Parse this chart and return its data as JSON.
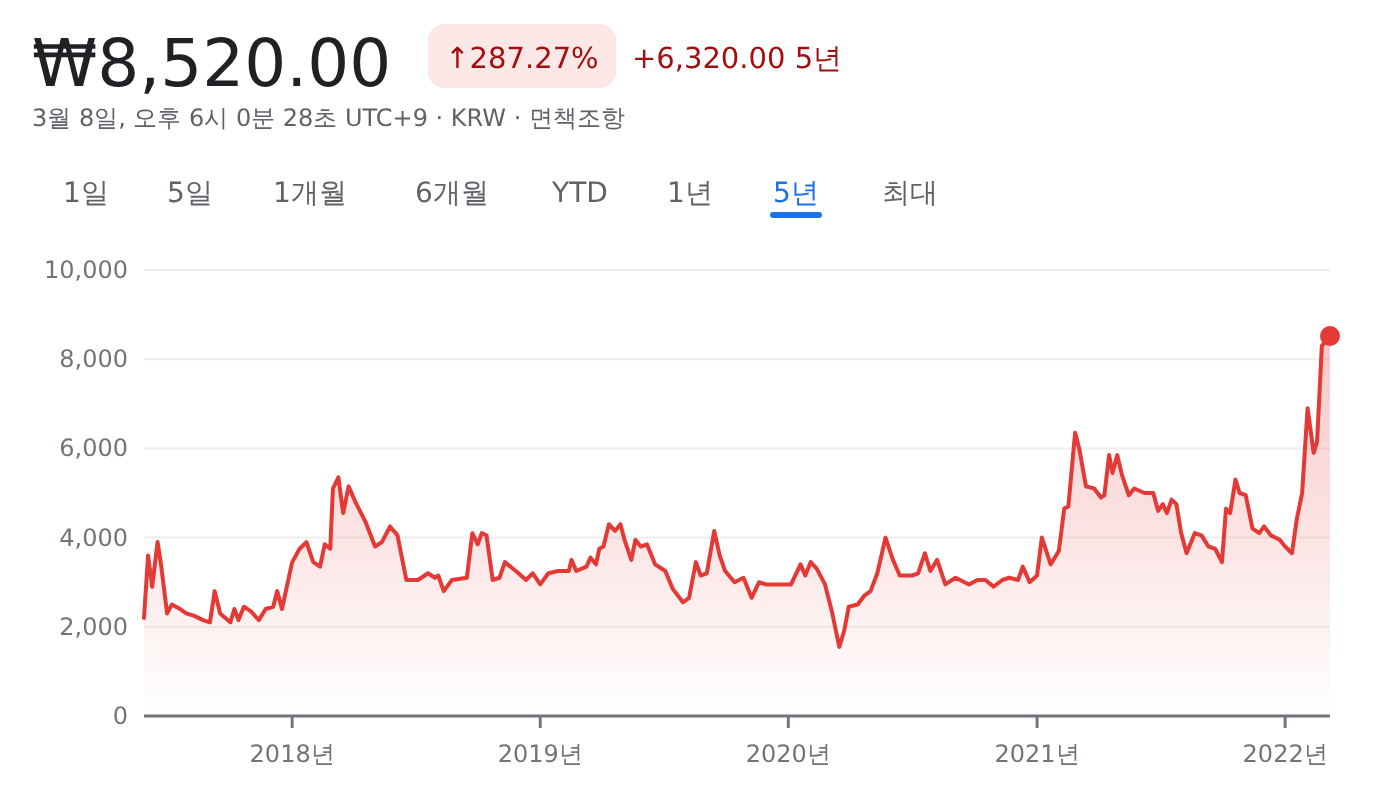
{
  "chart_data": {
    "type": "area",
    "title": "₩8,520.00",
    "subtitle": "3월 8일, 오후 6시 0분 28초 UTC+9 · KRW · 면책조항",
    "annotations": [
      "↑287.27%",
      "+6,320.00 5년",
      "1일",
      "5일",
      "1개월",
      "6개월",
      "YTD",
      "1년",
      "5년",
      "최대"
    ],
    "x": [
      "2017-05-28",
      "2017-06-03",
      "2017-06-09",
      "2017-06-17",
      "2017-06-22",
      "2017-07-01",
      "2017-07-08",
      "2017-07-20",
      "2017-07-29",
      "2017-08-09",
      "2017-08-23",
      "2017-09-02",
      "2017-09-09",
      "2017-09-17",
      "2017-10-02",
      "2017-10-08",
      "2017-10-14",
      "2017-10-22",
      "2017-11-01",
      "2017-11-13",
      "2017-11-23",
      "2017-12-04",
      "2017-12-10",
      "2017-12-17",
      "2018-01-01",
      "2018-01-12",
      "2018-01-22",
      "2018-02-01",
      "2018-02-11",
      "2018-02-18",
      "2018-02-26",
      "2018-03-02",
      "2018-03-10",
      "2018-03-17",
      "2018-03-25",
      "2018-04-04",
      "2018-04-19",
      "2018-05-03",
      "2018-05-13",
      "2018-05-25",
      "2018-06-05",
      "2018-06-18",
      "2018-07-05",
      "2018-07-20",
      "2018-07-30",
      "2018-08-04",
      "2018-08-12",
      "2018-08-24",
      "2018-09-15",
      "2018-09-23",
      "2018-10-01",
      "2018-10-07",
      "2018-10-14",
      "2018-10-23",
      "2018-11-02",
      "2018-11-10",
      "2018-11-22",
      "2018-11-30",
      "2018-12-11",
      "2018-12-21",
      "2019-01-01",
      "2019-01-13",
      "2019-01-27",
      "2019-02-12",
      "2019-02-16",
      "2019-02-23",
      "2019-03-10",
      "2019-03-16",
      "2019-03-24",
      "2019-03-29",
      "2019-04-04",
      "2019-04-12",
      "2019-04-21",
      "2019-04-29",
      "2019-05-05",
      "2019-05-15",
      "2019-05-21",
      "2019-05-29",
      "2019-06-07",
      "2019-06-19",
      "2019-07-04",
      "2019-07-15",
      "2019-07-30",
      "2019-08-08",
      "2019-08-18",
      "2019-08-25",
      "2019-09-03",
      "2019-09-14",
      "2019-09-22",
      "2019-09-30",
      "2019-10-14",
      "2019-10-27",
      "2019-11-08",
      "2019-11-19",
      "2019-11-29",
      "2019-12-11",
      "2020-01-05",
      "2020-01-19",
      "2020-01-26",
      "2020-02-03",
      "2020-02-12",
      "2020-02-24",
      "2020-03-05",
      "2020-03-16",
      "2020-03-23",
      "2020-03-30",
      "2020-04-12",
      "2020-04-22",
      "2020-05-01",
      "2020-05-11",
      "2020-05-23",
      "2020-06-03",
      "2020-06-13",
      "2020-07-01",
      "2020-07-10",
      "2020-07-20",
      "2020-07-28",
      "2020-08-07",
      "2020-08-19",
      "2020-09-03",
      "2020-09-23",
      "2020-10-05",
      "2020-10-17",
      "2020-10-29",
      "2020-11-11",
      "2020-11-21",
      "2020-12-04",
      "2020-12-11",
      "2020-12-21",
      "2021-01-01",
      "2021-01-08",
      "2021-01-21",
      "2021-02-02",
      "2021-02-10",
      "2021-02-16",
      "2021-02-26",
      "2021-03-04",
      "2021-03-14",
      "2021-03-26",
      "2021-04-05",
      "2021-04-10",
      "2021-04-17",
      "2021-04-22",
      "2021-04-29",
      "2021-05-06",
      "2021-05-16",
      "2021-05-24",
      "2021-06-08",
      "2021-06-21",
      "2021-06-28",
      "2021-07-05",
      "2021-07-11",
      "2021-07-18",
      "2021-07-25",
      "2021-08-01",
      "2021-08-09",
      "2021-08-21",
      "2021-08-31",
      "2021-09-10",
      "2021-09-20",
      "2021-09-30",
      "2021-10-06",
      "2021-10-12",
      "2021-10-20",
      "2021-10-26",
      "2021-11-04",
      "2021-11-14",
      "2021-11-24",
      "2021-12-01",
      "2021-12-11",
      "2021-12-24",
      "2022-01-01",
      "2022-01-11",
      "2022-01-18",
      "2022-01-26",
      "2022-02-03",
      "2022-02-12",
      "2022-02-17",
      "2022-02-24",
      "2022-03-08"
    ],
    "series": [
      {
        "color": "#e53935",
        "values": [
          2200,
          3600,
          2900,
          3900,
          3400,
          2300,
          2500,
          2400,
          2300,
          2250,
          2150,
          2100,
          2800,
          2300,
          2100,
          2400,
          2150,
          2450,
          2350,
          2150,
          2400,
          2450,
          2800,
          2400,
          3450,
          3750,
          3900,
          3450,
          3350,
          3850,
          3750,
          5100,
          5350,
          4550,
          5150,
          4800,
          4350,
          3800,
          3900,
          4250,
          4050,
          3050,
          3050,
          3200,
          3100,
          3150,
          2800,
          3050,
          3100,
          4100,
          3850,
          4100,
          4050,
          3050,
          3100,
          3450,
          3300,
          3200,
          3050,
          3200,
          2950,
          3200,
          3250,
          3250,
          3500,
          3250,
          3350,
          3550,
          3400,
          3750,
          3800,
          4300,
          4150,
          4300,
          3950,
          3500,
          3950,
          3800,
          3850,
          3400,
          3250,
          2850,
          2550,
          2650,
          3450,
          3150,
          3200,
          4150,
          3600,
          3250,
          3000,
          3100,
          2650,
          3000,
          2950,
          2950,
          2950,
          3400,
          3150,
          3450,
          3300,
          2950,
          2350,
          1550,
          1900,
          2450,
          2500,
          2700,
          2800,
          3200,
          4000,
          3500,
          3150,
          3150,
          3200,
          3650,
          3250,
          3500,
          2950,
          3100,
          2950,
          3050,
          3050,
          2900,
          3050,
          3100,
          3050,
          3350,
          3000,
          3150,
          4000,
          3400,
          3700,
          4650,
          4700,
          6350,
          6000,
          5150,
          5100,
          4900,
          4950,
          5850,
          5450,
          5850,
          5400,
          4950,
          5100,
          5000,
          5000,
          4600,
          4750,
          4550,
          4850,
          4750,
          4100,
          3650,
          4100,
          4050,
          3800,
          3750,
          3450,
          4650,
          4550,
          5300,
          5000,
          4950,
          4200,
          4100,
          4250,
          4050,
          3950,
          3800,
          3650,
          4400,
          5000,
          6900,
          5900,
          6150,
          8300,
          8520
        ]
      }
    ],
    "xlim": [
      "2017-05-28",
      "2022-03-08"
    ],
    "xticks": [
      {
        "value": "2018-01-01",
        "label": "2018년"
      },
      {
        "value": "2019-01-01",
        "label": "2019년"
      },
      {
        "value": "2020-01-01",
        "label": "2020년"
      },
      {
        "value": "2021-01-01",
        "label": "2021년"
      },
      {
        "value": "2022-01-01",
        "label": "2022년"
      }
    ],
    "ylim": [
      0,
      10000
    ],
    "yticks": [
      0,
      {
        "value": 2000,
        "label": "2,000"
      },
      {
        "value": 4000,
        "label": "4,000"
      },
      {
        "value": 6000,
        "label": "6,000"
      },
      {
        "value": 8000,
        "label": "8,000"
      },
      {
        "value": 10000,
        "label": "10,000"
      }
    ],
    "grid": "y"
  }
}
